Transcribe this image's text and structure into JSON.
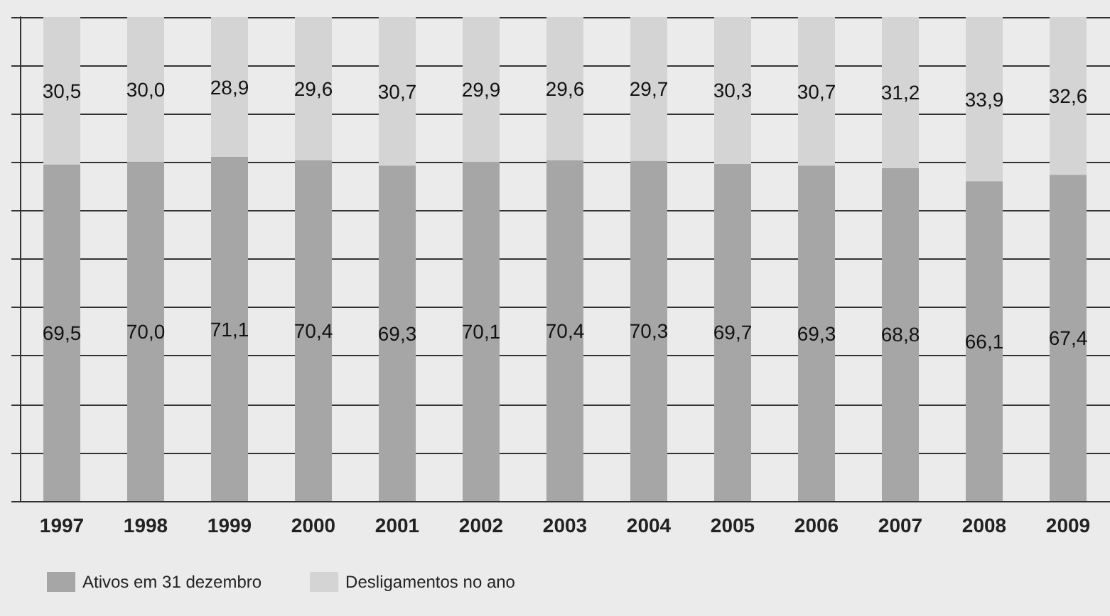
{
  "chart_data": {
    "type": "bar",
    "stacked": true,
    "grid": "y",
    "legend": "bottom left",
    "tick_labels": "x",
    "categories": [
      "1997",
      "1998",
      "1999",
      "2000",
      "2001",
      "2002",
      "2003",
      "2004",
      "2005",
      "2006",
      "2007",
      "2008",
      "2009"
    ],
    "series": [
      {
        "name": "Ativos em 31 dezembro",
        "color": "#a6a6a6",
        "values": [
          69.5,
          70.0,
          71.1,
          70.4,
          69.3,
          70.1,
          70.4,
          70.3,
          69.7,
          69.3,
          68.8,
          66.1,
          67.4
        ],
        "value_labels": [
          "69,5",
          "70,0",
          "71,1",
          "70,4",
          "69,3",
          "70,1",
          "70,4",
          "70,3",
          "69,7",
          "69,3",
          "68,8",
          "66,1",
          "67,4"
        ]
      },
      {
        "name": "Desligamentos no ano",
        "color": "#d4d4d4",
        "values": [
          30.5,
          30.0,
          28.9,
          29.6,
          30.7,
          29.9,
          29.6,
          29.7,
          30.3,
          30.7,
          31.2,
          33.9,
          32.6
        ],
        "value_labels": [
          "30,5",
          "30,0",
          "28,9",
          "29,6",
          "30,7",
          "29,9",
          "29,6",
          "29,7",
          "30,3",
          "30,7",
          "31,2",
          "33,9",
          "32,6"
        ]
      }
    ]
  }
}
